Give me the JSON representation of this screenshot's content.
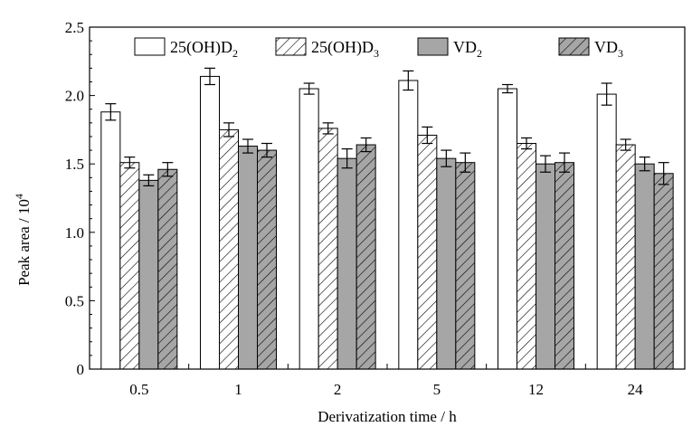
{
  "chart_data": {
    "type": "bar",
    "title": "",
    "xlabel": "Derivatization time / h",
    "ylabel": "Peak area / 10",
    "ylabel_superscript": "4",
    "ylim": [
      0,
      2.5
    ],
    "yticks": [
      "0",
      "0.5",
      "1.0",
      "1.5",
      "2.0",
      "2.5"
    ],
    "ytick_values": [
      0,
      0.5,
      1.0,
      1.5,
      2.0,
      2.5
    ],
    "categories": [
      "0.5",
      "1",
      "2",
      "5",
      "12",
      "24"
    ],
    "legend_position": "top",
    "series": [
      {
        "name": "25(OH)D2",
        "label_main": "25(OH)D",
        "label_sub": "2",
        "style": "hollow",
        "values": [
          1.88,
          2.14,
          2.05,
          2.11,
          2.05,
          2.01
        ],
        "errors": [
          0.06,
          0.06,
          0.04,
          0.07,
          0.03,
          0.08
        ]
      },
      {
        "name": "25(OH)D3",
        "label_main": "25(OH)D",
        "label_sub": "3",
        "style": "hatch-white",
        "values": [
          1.51,
          1.75,
          1.76,
          1.71,
          1.65,
          1.64
        ],
        "errors": [
          0.04,
          0.05,
          0.04,
          0.06,
          0.04,
          0.04
        ]
      },
      {
        "name": "VD2",
        "label_main": "VD",
        "label_sub": "2",
        "style": "solid-gray",
        "values": [
          1.38,
          1.63,
          1.54,
          1.54,
          1.5,
          1.5
        ],
        "errors": [
          0.04,
          0.05,
          0.07,
          0.06,
          0.06,
          0.05
        ]
      },
      {
        "name": "VD3",
        "label_main": "VD",
        "label_sub": "3",
        "style": "hatch-gray",
        "values": [
          1.46,
          1.6,
          1.64,
          1.51,
          1.51,
          1.43
        ],
        "errors": [
          0.05,
          0.05,
          0.05,
          0.07,
          0.07,
          0.08
        ]
      }
    ]
  },
  "colors": {
    "gray_fill": "#a6a6a6",
    "white_fill": "#ffffff",
    "stroke": "#000000"
  }
}
